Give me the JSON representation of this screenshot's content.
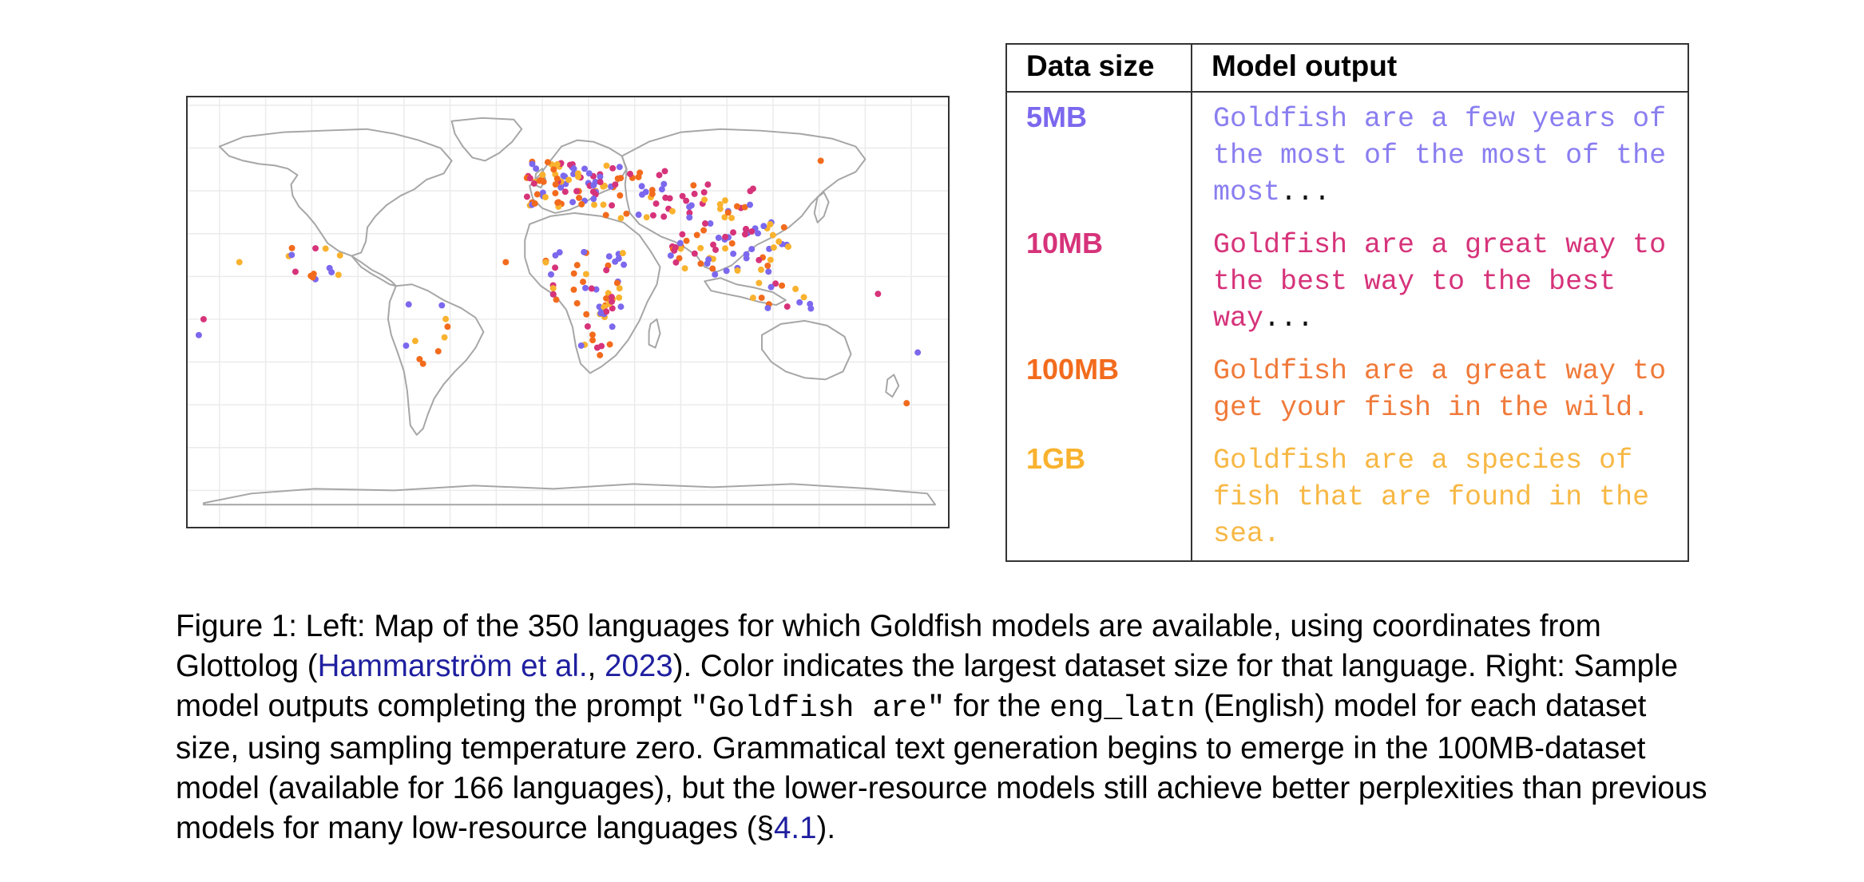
{
  "table": {
    "header_size": "Data size",
    "header_output": "Model output",
    "rows": [
      {
        "size": "5MB",
        "color": "#7b68ee",
        "output": "Goldfish are a few years of the most of the most of the most",
        "suffix": "..."
      },
      {
        "size": "10MB",
        "color": "#d6337a",
        "output": "Goldfish are a great way to the best way to the best way",
        "suffix": "..."
      },
      {
        "size": "100MB",
        "color": "#f26b1d",
        "output": "Goldfish are a great way to get your fish in the wild.",
        "suffix": ""
      },
      {
        "size": "1GB",
        "color": "#f9b22e",
        "output": "Goldfish are a species of fish that are found in the sea.",
        "suffix": ""
      }
    ]
  },
  "caption": {
    "label": "Figure 1:",
    "text1": " Left: Map of the 350 languages for which Goldfish models are available, using coordinates from Glottolog (",
    "cite_authors": "Hammarström et al.",
    "sep": ", ",
    "cite_year": "2023",
    "text2": "). Color indicates the largest dataset size for that language. Right: Sample model outputs completing the prompt ",
    "prompt": "\"Goldfish are\"",
    "text3": " for the ",
    "model_code": "eng_latn",
    "text4": " (English) model for each dataset size, using sampling temperature zero. Grammatical text generation begins to emerge in the 100MB-dataset model (available for 166 languages), but the lower-resource models still achieve better perplexities than previous models for many low-resource languages (§",
    "section_ref": "4.1",
    "text5": ")."
  },
  "map": {
    "land_stroke": "#a6a6a6",
    "grid_stroke": "#ebebeb"
  }
}
